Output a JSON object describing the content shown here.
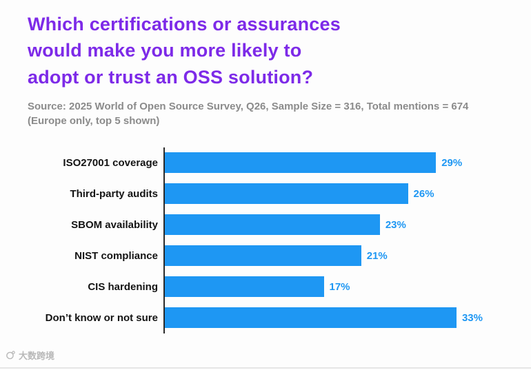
{
  "title": "Which certifications or assurances would make you more likely to adopt or trust an OSS solution?",
  "title_lines": [
    "Which certifications or assurances",
    "would make you more likely to",
    "adopt or trust an OSS solution?"
  ],
  "source_text": "Source: 2025 World of Open Source Survey, Q26, Sample Size = 316, Total mentions = 674 (Europe only, top 5 shown)",
  "watermark": "大数跨境",
  "colors": {
    "title": "#7d2ae8",
    "bar": "#1e97f3",
    "value_label": "#1e97f3",
    "source": "#8b8b8b",
    "category": "#141414",
    "axis": "#2a2a2a",
    "background": "#fdfdfd"
  },
  "chart_data": {
    "type": "bar",
    "orientation": "horizontal",
    "title": "Which certifications or assurances would make you more likely to adopt or trust an OSS solution?",
    "subtitle": "Source: 2025 World of Open Source Survey, Q26, Sample Size = 316, Total mentions = 674 (Europe only, top 5 shown)",
    "categories": [
      "ISO27001 coverage",
      "Third-party audits",
      "SBOM availability",
      "NIST compliance",
      "CIS hardening",
      "Don’t know or not sure"
    ],
    "values": [
      29,
      26,
      23,
      21,
      17,
      33
    ],
    "value_labels": [
      "29%",
      "26%",
      "23%",
      "21%",
      "17%",
      "33%"
    ],
    "value_suffix": "%",
    "xlim": [
      0,
      34
    ],
    "grid": false,
    "legend": "none"
  }
}
